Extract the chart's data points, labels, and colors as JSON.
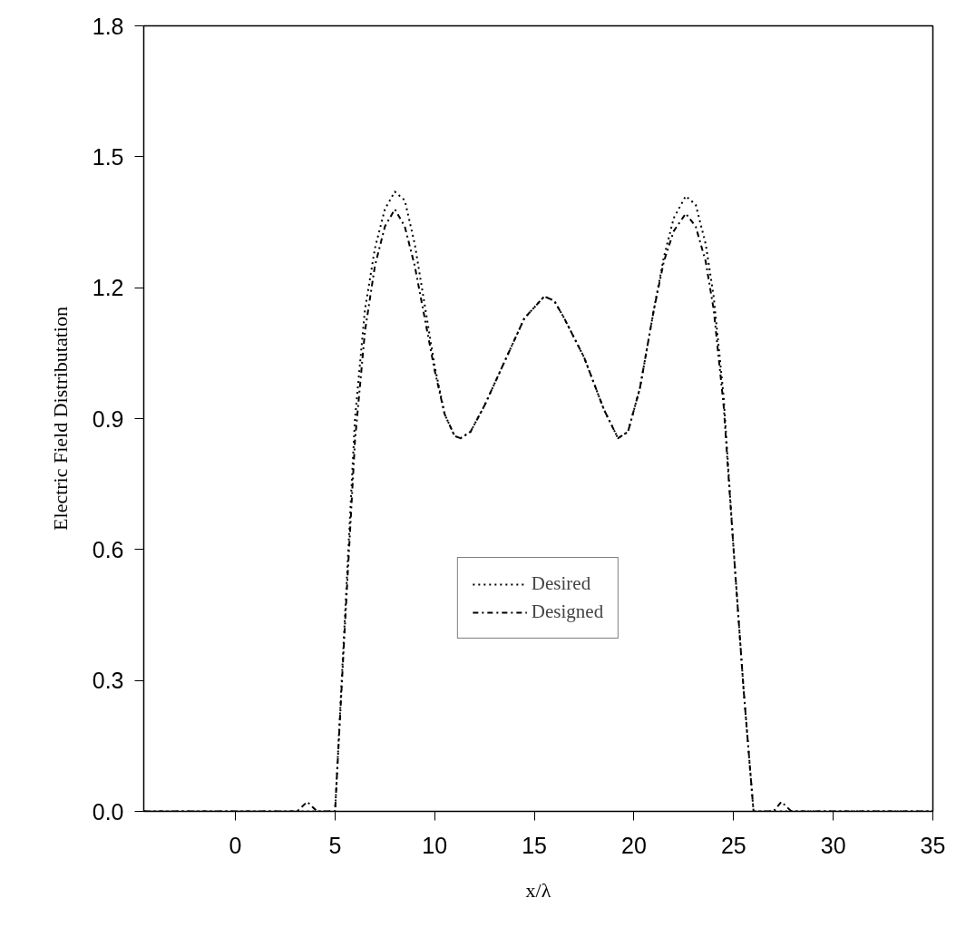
{
  "chart_data": {
    "type": "line",
    "xlabel": "x/λ",
    "ylabel": "Electric Field Distributation",
    "xlim": [
      -4.6,
      35
    ],
    "ylim": [
      0,
      1.8
    ],
    "xticks": [
      0,
      5,
      10,
      15,
      20,
      25,
      30,
      35
    ],
    "yticks": [
      {
        "value": 0,
        "label": "0.0"
      },
      0.3,
      0.6,
      0.9,
      1.2,
      1.5,
      1.8
    ],
    "grid": false,
    "legend": "bottom",
    "marker": "none",
    "series": [
      {
        "name": "Desired",
        "color": "#000000",
        "line_style": "dotted",
        "x": [
          -4.6,
          4.9,
          5.0,
          5.5,
          6,
          6.5,
          7,
          7.5,
          8,
          8.5,
          9,
          9.5,
          10,
          10.5,
          11,
          11.3,
          11.8,
          12.5,
          13.5,
          14.5,
          15.5,
          16,
          16.5,
          17.5,
          18.5,
          19.2,
          19.7,
          20.3,
          21,
          21.5,
          22,
          22.6,
          23.1,
          23.6,
          24,
          24.5,
          25,
          25.5,
          26,
          35
        ],
        "values": [
          0,
          0,
          0,
          0.45,
          0.9,
          1.15,
          1.29,
          1.38,
          1.42,
          1.4,
          1.3,
          1.16,
          1.02,
          0.91,
          0.86,
          0.855,
          0.87,
          0.93,
          1.03,
          1.13,
          1.18,
          1.17,
          1.13,
          1.04,
          0.92,
          0.855,
          0.87,
          0.97,
          1.15,
          1.27,
          1.36,
          1.41,
          1.39,
          1.3,
          1.18,
          0.95,
          0.6,
          0.28,
          0,
          0
        ]
      },
      {
        "name": "Designed",
        "color": "#000000",
        "line_style": "dashdot",
        "x": [
          -4.6,
          3.1,
          3.6,
          4.1,
          5.0,
          5.5,
          6,
          6.5,
          7,
          7.5,
          8,
          8.5,
          9,
          9.5,
          10,
          10.5,
          11,
          11.3,
          11.8,
          12.5,
          13.5,
          14.5,
          15.5,
          16,
          16.5,
          17.5,
          18.5,
          19.2,
          19.7,
          20.3,
          21,
          21.5,
          22,
          22.6,
          23.1,
          23.6,
          24,
          24.5,
          25,
          25.5,
          26,
          27,
          27.4,
          27.9,
          35
        ],
        "values": [
          0,
          0,
          0.022,
          0,
          0,
          0.43,
          0.85,
          1.1,
          1.25,
          1.34,
          1.38,
          1.34,
          1.25,
          1.13,
          1.01,
          0.91,
          0.86,
          0.855,
          0.87,
          0.93,
          1.03,
          1.13,
          1.18,
          1.17,
          1.13,
          1.04,
          0.92,
          0.855,
          0.87,
          0.97,
          1.15,
          1.26,
          1.33,
          1.37,
          1.34,
          1.26,
          1.15,
          0.93,
          0.6,
          0.28,
          0,
          0,
          0.022,
          0,
          0
        ]
      }
    ]
  }
}
